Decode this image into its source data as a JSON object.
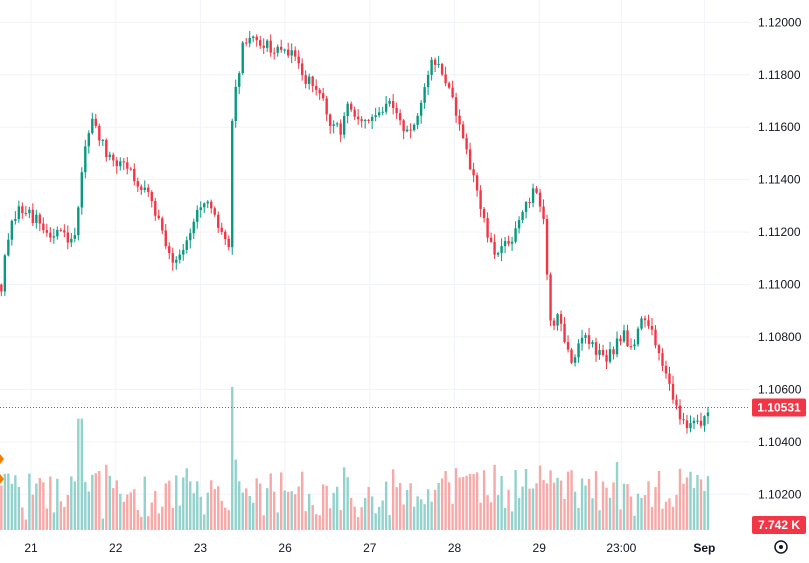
{
  "chart_data": {
    "type": "candlestick",
    "y_axis": {
      "range": [
        1.1014,
        1.1207
      ],
      "ticks": [
        "1.12000",
        "1.11800",
        "1.11600",
        "1.11400",
        "1.11200",
        "1.11000",
        "1.10800",
        "1.10600",
        "1.10400",
        "1.10200"
      ]
    },
    "x_axis": {
      "ticks": [
        {
          "label": "21",
          "pos": 0.0
        },
        {
          "label": "22",
          "pos": 1.0
        },
        {
          "label": "23",
          "pos": 2.0
        },
        {
          "label": "26",
          "pos": 3.0
        },
        {
          "label": "27",
          "pos": 4.0
        },
        {
          "label": "28",
          "pos": 5.0
        },
        {
          "label": "29",
          "pos": 6.0
        },
        {
          "label": "23:00",
          "pos": 6.97
        },
        {
          "label": "Sep",
          "pos": 7.95
        }
      ]
    },
    "price_path": [
      [
        -0.35,
        1.11
      ],
      [
        -0.28,
        1.1115
      ],
      [
        -0.2,
        1.1125
      ],
      [
        -0.12,
        1.1128
      ],
      [
        -0.04,
        1.113
      ],
      [
        0.04,
        1.1125
      ],
      [
        0.12,
        1.1122
      ],
      [
        0.22,
        1.1118
      ],
      [
        0.32,
        1.112
      ],
      [
        0.42,
        1.1117
      ],
      [
        0.5,
        1.1115
      ],
      [
        0.55,
        1.1124
      ],
      [
        0.6,
        1.1145
      ],
      [
        0.66,
        1.1158
      ],
      [
        0.72,
        1.1162
      ],
      [
        0.8,
        1.1156
      ],
      [
        0.88,
        1.115
      ],
      [
        0.96,
        1.1145
      ],
      [
        1.05,
        1.1146
      ],
      [
        1.12,
        1.1148
      ],
      [
        1.2,
        1.114
      ],
      [
        1.28,
        1.1136
      ],
      [
        1.36,
        1.114
      ],
      [
        1.44,
        1.1132
      ],
      [
        1.52,
        1.1123
      ],
      [
        1.6,
        1.1115
      ],
      [
        1.68,
        1.111
      ],
      [
        1.76,
        1.1112
      ],
      [
        1.84,
        1.1118
      ],
      [
        1.92,
        1.1125
      ],
      [
        2.0,
        1.1128
      ],
      [
        2.08,
        1.113
      ],
      [
        2.16,
        1.1125
      ],
      [
        2.24,
        1.112
      ],
      [
        2.3,
        1.1115
      ],
      [
        2.34,
        1.1114
      ],
      [
        2.36,
        1.1152
      ],
      [
        2.39,
        1.1175
      ],
      [
        2.44,
        1.1178
      ],
      [
        2.5,
        1.119
      ],
      [
        2.6,
        1.1196
      ],
      [
        2.7,
        1.1193
      ],
      [
        2.8,
        1.1191
      ],
      [
        2.9,
        1.1188
      ],
      [
        3.0,
        1.119
      ],
      [
        3.1,
        1.1186
      ],
      [
        3.2,
        1.118
      ],
      [
        3.3,
        1.1178
      ],
      [
        3.4,
        1.1172
      ],
      [
        3.5,
        1.1165
      ],
      [
        3.58,
        1.1158
      ],
      [
        3.66,
        1.116
      ],
      [
        3.74,
        1.1168
      ],
      [
        3.82,
        1.1164
      ],
      [
        3.9,
        1.116
      ],
      [
        3.98,
        1.1162
      ],
      [
        4.06,
        1.1164
      ],
      [
        4.14,
        1.1166
      ],
      [
        4.22,
        1.1168
      ],
      [
        4.3,
        1.1166
      ],
      [
        4.38,
        1.1162
      ],
      [
        4.46,
        1.1158
      ],
      [
        4.54,
        1.116
      ],
      [
        4.62,
        1.1168
      ],
      [
        4.68,
        1.118
      ],
      [
        4.74,
        1.1186
      ],
      [
        4.8,
        1.1184
      ],
      [
        4.86,
        1.118
      ],
      [
        4.94,
        1.1175
      ],
      [
        5.0,
        1.1168
      ],
      [
        5.06,
        1.116
      ],
      [
        5.12,
        1.1152
      ],
      [
        5.18,
        1.1145
      ],
      [
        5.24,
        1.1138
      ],
      [
        5.3,
        1.113
      ],
      [
        5.36,
        1.1122
      ],
      [
        5.42,
        1.1115
      ],
      [
        5.48,
        1.111
      ],
      [
        5.54,
        1.1112
      ],
      [
        5.6,
        1.1116
      ],
      [
        5.66,
        1.1118
      ],
      [
        5.74,
        1.1121
      ],
      [
        5.82,
        1.1128
      ],
      [
        5.88,
        1.1132
      ],
      [
        5.94,
        1.1135
      ],
      [
        6.0,
        1.113
      ],
      [
        6.05,
        1.1126
      ],
      [
        6.08,
        1.111
      ],
      [
        6.12,
        1.109
      ],
      [
        6.16,
        1.1085
      ],
      [
        6.22,
        1.109
      ],
      [
        6.28,
        1.1082
      ],
      [
        6.34,
        1.1074
      ],
      [
        6.4,
        1.107
      ],
      [
        6.46,
        1.1078
      ],
      [
        6.52,
        1.1081
      ],
      [
        6.58,
        1.1078
      ],
      [
        6.64,
        1.1075
      ],
      [
        6.7,
        1.1074
      ],
      [
        6.76,
        1.1073
      ],
      [
        6.82,
        1.1072
      ],
      [
        6.88,
        1.1076
      ],
      [
        6.94,
        1.1079
      ],
      [
        7.0,
        1.1082
      ],
      [
        7.06,
        1.1078
      ],
      [
        7.12,
        1.1076
      ],
      [
        7.18,
        1.1084
      ],
      [
        7.24,
        1.1086
      ],
      [
        7.3,
        1.1084
      ],
      [
        7.36,
        1.1079
      ],
      [
        7.42,
        1.1074
      ],
      [
        7.48,
        1.107
      ],
      [
        7.54,
        1.1062
      ],
      [
        7.6,
        1.1055
      ],
      [
        7.66,
        1.105
      ],
      [
        7.72,
        1.1047
      ],
      [
        7.8,
        1.1049
      ],
      [
        7.88,
        1.1045
      ],
      [
        7.92,
        1.1043
      ],
      [
        7.96,
        1.105
      ],
      [
        8.0,
        1.1053
      ]
    ],
    "last_price": {
      "label": "1.10531",
      "value": 1.10531,
      "color": "#f23645"
    },
    "volume": {
      "label": "7.742 K",
      "max_ratio": 0.19
    },
    "colors": {
      "up": "#089981",
      "down": "#f23645",
      "up_volume": "#92d2cc",
      "down_volume": "#f7a9a7",
      "grid": "#f0f3fa"
    },
    "grid": true,
    "legend": "none"
  }
}
